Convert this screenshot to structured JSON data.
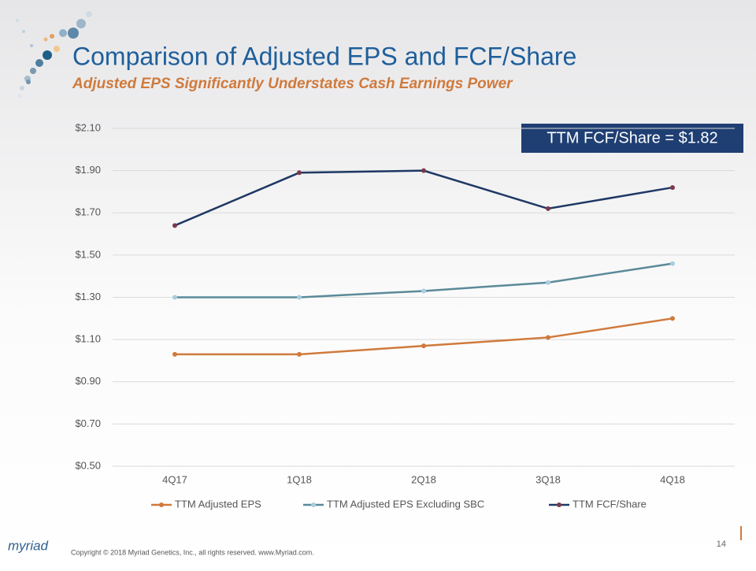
{
  "chart_data": {
    "type": "line",
    "title": "Comparison of Adjusted EPS and FCF/Share",
    "subtitle": "Adjusted EPS Significantly Understates Cash Earnings Power",
    "annotation": "TTM FCF/Share = $1.82",
    "categories": [
      "4Q17",
      "1Q18",
      "2Q18",
      "3Q18",
      "4Q18"
    ],
    "series": [
      {
        "name": "TTM Adjusted EPS",
        "color": "#d07a3c",
        "marker_color": "#d07a3c",
        "values": [
          1.03,
          1.03,
          1.07,
          1.11,
          1.2
        ]
      },
      {
        "name": "TTM Adjusted EPS Excluding SBC",
        "color": "#5a8a99",
        "marker_color": "#a9cde0",
        "values": [
          1.3,
          1.3,
          1.33,
          1.37,
          1.46
        ]
      },
      {
        "name": "TTM FCF/Share",
        "color": "#1f3864",
        "marker_color": "#7b3a4a",
        "values": [
          1.64,
          1.89,
          1.9,
          1.72,
          1.82
        ]
      }
    ],
    "ylim": [
      0.5,
      2.1
    ],
    "yticks": [
      {
        "value": 0.5,
        "label": "$0.50"
      },
      {
        "value": 0.7,
        "label": "$0.70"
      },
      {
        "value": 0.9,
        "label": "$0.90"
      },
      {
        "value": 1.1,
        "label": "$1.10"
      },
      {
        "value": 1.3,
        "label": "$1.30"
      },
      {
        "value": 1.5,
        "label": "$1.50"
      },
      {
        "value": 1.7,
        "label": "$1.70"
      },
      {
        "value": 1.9,
        "label": "$1.90"
      },
      {
        "value": 2.1,
        "label": "$2.10"
      }
    ],
    "grid": true
  },
  "footer": {
    "logo": "myriad",
    "copyright": "Copyright © 2018  Myriad Genetics, Inc., all rights reserved.  www.Myriad.com.",
    "page": "14"
  }
}
